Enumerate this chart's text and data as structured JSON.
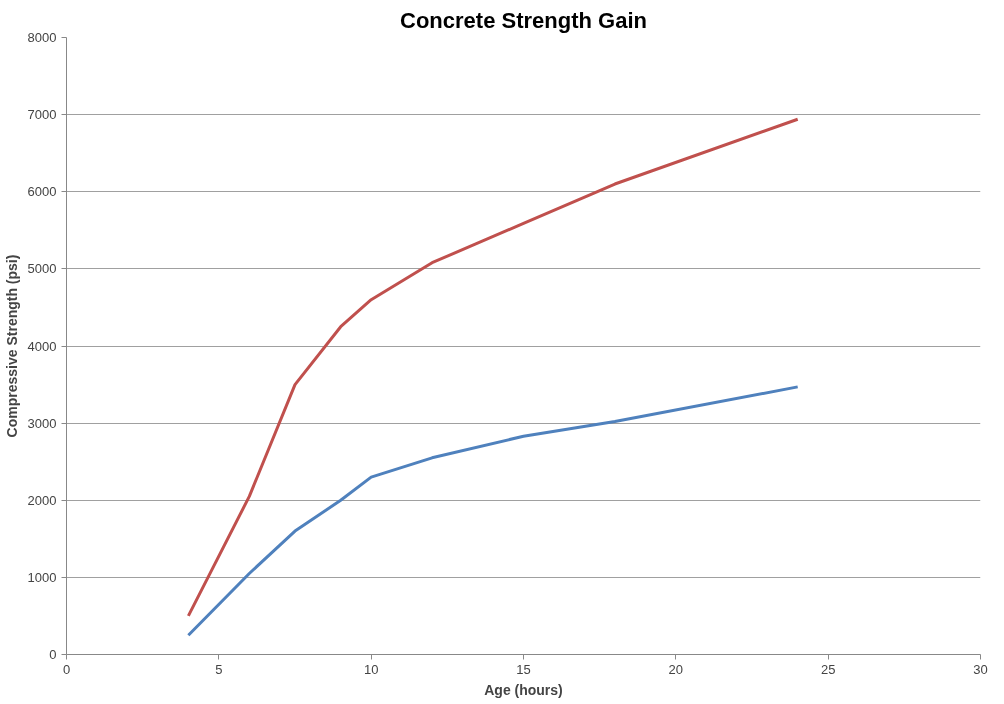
{
  "chart_data": {
    "type": "line",
    "title": "Concrete Strength Gain",
    "xlabel": "Age (hours)",
    "ylabel": "Compressive Strength (psi)",
    "xlim": [
      0,
      30
    ],
    "xticks": [
      0,
      5,
      10,
      15,
      20,
      25,
      30
    ],
    "ylim": [
      0,
      8000
    ],
    "yticks": [
      0,
      1000,
      2000,
      3000,
      4000,
      5000,
      6000,
      7000,
      8000
    ],
    "grid": "y",
    "marker": "none",
    "line_style": "solid",
    "series": [
      {
        "color": "#c0504d",
        "x": [
          4,
          6,
          7.5,
          9,
          10,
          12,
          15,
          18,
          24
        ],
        "values": [
          500,
          2050,
          3500,
          4250,
          4600,
          5080,
          5590,
          6100,
          6940
        ]
      },
      {
        "color": "#4f81bd",
        "x": [
          4,
          6,
          7.5,
          9,
          10,
          12,
          15,
          18,
          24
        ],
        "values": [
          250,
          1050,
          1600,
          2000,
          2300,
          2550,
          2830,
          3020,
          3470
        ]
      }
    ]
  }
}
